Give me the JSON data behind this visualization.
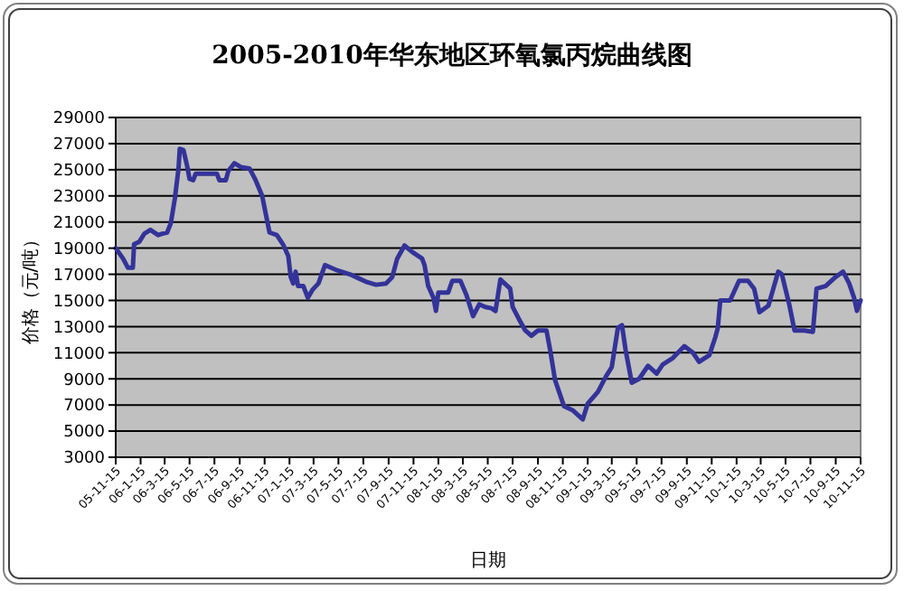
{
  "chart_data": {
    "type": "line",
    "title": "2005-2010年华东地区环氧氯丙烷曲线图",
    "xlabel": "日期",
    "ylabel": "价格（元/吨）",
    "ylim": [
      3000,
      29000
    ],
    "yticks": [
      3000,
      5000,
      7000,
      9000,
      11000,
      13000,
      15000,
      17000,
      19000,
      21000,
      23000,
      25000,
      27000,
      29000
    ],
    "xlim": [
      "2005-11-15",
      "2010-11-15"
    ],
    "xticks": [
      {
        "value": "2005-11-15",
        "label": "05-11-15"
      },
      {
        "value": "2006-01-15",
        "label": "06-1-15"
      },
      {
        "value": "2006-03-15",
        "label": "06-3-15"
      },
      {
        "value": "2006-05-15",
        "label": "06-5-15"
      },
      {
        "value": "2006-07-15",
        "label": "06-7-15"
      },
      {
        "value": "2006-09-15",
        "label": "06-9-15"
      },
      {
        "value": "2006-11-15",
        "label": "06-11-15"
      },
      {
        "value": "2007-01-15",
        "label": "07-1-15"
      },
      {
        "value": "2007-03-15",
        "label": "07-3-15"
      },
      {
        "value": "2007-05-15",
        "label": "07-5-15"
      },
      {
        "value": "2007-07-15",
        "label": "07-7-15"
      },
      {
        "value": "2007-09-15",
        "label": "07-9-15"
      },
      {
        "value": "2007-11-15",
        "label": "07-11-15"
      },
      {
        "value": "2008-01-15",
        "label": "08-1-15"
      },
      {
        "value": "2008-03-15",
        "label": "08-3-15"
      },
      {
        "value": "2008-05-15",
        "label": "08-5-15"
      },
      {
        "value": "2008-07-15",
        "label": "08-7-15"
      },
      {
        "value": "2008-09-15",
        "label": "08-9-15"
      },
      {
        "value": "2008-11-15",
        "label": "08-11-15"
      },
      {
        "value": "2009-01-15",
        "label": "09-1-15"
      },
      {
        "value": "2009-03-15",
        "label": "09-3-15"
      },
      {
        "value": "2009-05-15",
        "label": "09-5-15"
      },
      {
        "value": "2009-07-15",
        "label": "09-7-15"
      },
      {
        "value": "2009-09-15",
        "label": "09-9-15"
      },
      {
        "value": "2009-11-15",
        "label": "09-11-15"
      },
      {
        "value": "2010-01-15",
        "label": "10-1-15"
      },
      {
        "value": "2010-03-15",
        "label": "10-3-15"
      },
      {
        "value": "2010-05-15",
        "label": "10-5-15"
      },
      {
        "value": "2010-07-15",
        "label": "10-7-15"
      },
      {
        "value": "2010-09-15",
        "label": "10-9-15"
      },
      {
        "value": "2010-11-15",
        "label": "10-11-15"
      }
    ],
    "grid": "y",
    "marker": "none",
    "line_style": "solid",
    "series": [
      {
        "color": "#333399",
        "x": [
          "2005-11-15",
          "2005-12-03",
          "2005-12-15",
          "2005-12-27",
          "2005-12-30",
          "2006-01-12",
          "2006-01-24",
          "2006-02-08",
          "2006-02-27",
          "2006-03-09",
          "2006-03-21",
          "2006-03-30",
          "2006-04-09",
          "2006-04-18",
          "2006-04-21",
          "2006-04-30",
          "2006-05-09",
          "2006-05-15",
          "2006-05-24",
          "2006-05-30",
          "2006-07-21",
          "2006-07-27",
          "2006-08-12",
          "2006-08-18",
          "2006-09-02",
          "2006-09-18",
          "2006-10-09",
          "2006-10-24",
          "2006-11-09",
          "2006-11-18",
          "2006-11-27",
          "2006-12-15",
          "2006-12-30",
          "2007-01-12",
          "2007-01-18",
          "2007-01-24",
          "2007-01-30",
          "2007-02-05",
          "2007-02-18",
          "2007-03-01",
          "2007-03-12",
          "2007-03-27",
          "2007-04-12",
          "2007-04-27",
          "2007-05-12",
          "2007-06-12",
          "2007-07-03",
          "2007-07-24",
          "2007-08-15",
          "2007-09-09",
          "2007-09-24",
          "2007-10-06",
          "2007-10-24",
          "2007-11-12",
          "2007-12-06",
          "2007-12-12",
          "2007-12-21",
          "2008-01-03",
          "2008-01-09",
          "2008-01-15",
          "2008-02-08",
          "2008-02-18",
          "2008-03-09",
          "2008-03-24",
          "2008-04-09",
          "2008-04-24",
          "2008-05-09",
          "2008-05-24",
          "2008-06-03",
          "2008-06-15",
          "2008-07-09",
          "2008-07-15",
          "2008-07-30",
          "2008-08-15",
          "2008-08-30",
          "2008-09-15",
          "2008-10-06",
          "2008-10-15",
          "2008-10-27",
          "2008-11-18",
          "2008-12-09",
          "2009-01-03",
          "2009-01-15",
          "2009-02-09",
          "2009-03-01",
          "2009-03-15",
          "2009-03-30",
          "2009-04-09",
          "2009-04-18",
          "2009-05-03",
          "2009-05-21",
          "2009-06-12",
          "2009-07-03",
          "2009-07-18",
          "2009-08-12",
          "2009-09-09",
          "2009-09-30",
          "2009-10-15",
          "2009-11-09",
          "2009-11-24",
          "2009-11-30",
          "2009-12-06",
          "2009-12-30",
          "2010-01-21",
          "2010-02-12",
          "2010-02-27",
          "2010-03-12",
          "2010-04-03",
          "2010-04-27",
          "2010-05-06",
          "2010-05-24",
          "2010-06-06",
          "2010-06-30",
          "2010-07-21",
          "2010-07-30",
          "2010-08-21",
          "2010-09-15",
          "2010-10-03",
          "2010-10-18",
          "2010-10-30",
          "2010-11-06",
          "2010-11-15"
        ],
        "values": [
          19000,
          18200,
          17500,
          17500,
          19300,
          19500,
          20100,
          20400,
          20000,
          20100,
          20200,
          20900,
          22800,
          25100,
          26600,
          26500,
          25300,
          24300,
          24200,
          24700,
          24700,
          24200,
          24200,
          24900,
          25500,
          25200,
          25100,
          24200,
          23000,
          21600,
          20200,
          20000,
          19300,
          18400,
          16800,
          16300,
          17200,
          16100,
          16100,
          15200,
          15800,
          16300,
          17700,
          17500,
          17300,
          17000,
          16700,
          16400,
          16200,
          16300,
          16800,
          18200,
          19200,
          18700,
          18200,
          17700,
          16100,
          15200,
          14200,
          15600,
          15600,
          16500,
          16500,
          15400,
          13800,
          14700,
          14500,
          14400,
          14200,
          16600,
          15900,
          14500,
          13600,
          12700,
          12300,
          12700,
          12700,
          11200,
          8900,
          6900,
          6600,
          5900,
          7100,
          8000,
          9200,
          9900,
          12900,
          13100,
          11200,
          8700,
          9000,
          10000,
          9400,
          10100,
          10600,
          11500,
          11000,
          10300,
          10800,
          12200,
          12900,
          15000,
          15000,
          16500,
          16500,
          15900,
          14100,
          14600,
          17200,
          17000,
          14700,
          12700,
          12700,
          12600,
          15900,
          16100,
          16800,
          17200,
          16300,
          15200,
          14200,
          15000
        ]
      }
    ]
  }
}
